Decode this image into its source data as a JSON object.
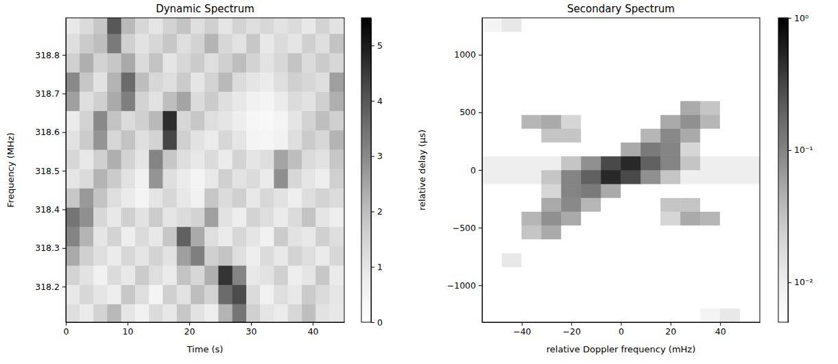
{
  "chart_data": [
    {
      "type": "heatmap",
      "title": "Dynamic Spectrum",
      "xlabel": "Time (s)",
      "ylabel": "Frequency (MHz)",
      "xlim": [
        0,
        45.1
      ],
      "ylim": [
        318.108,
        318.896
      ],
      "xticks": [
        0,
        10,
        20,
        30,
        40
      ],
      "yticks": [
        318.2,
        318.3,
        318.4,
        318.5,
        318.6,
        318.7,
        318.8
      ],
      "x": [
        1.125,
        3.375,
        5.625,
        7.875,
        10.125,
        12.375,
        14.625,
        16.875,
        19.125,
        21.375,
        23.625,
        25.875,
        28.125,
        30.375,
        32.625,
        34.875,
        37.125,
        39.375,
        41.625,
        43.875
      ],
      "y": [
        318.13,
        318.18,
        318.23,
        318.28,
        318.33,
        318.38,
        318.43,
        318.48,
        318.53,
        318.58,
        318.63,
        318.68,
        318.73,
        318.78,
        318.83,
        318.88
      ],
      "cells": [
        [
          1.2,
          0.8,
          1.5,
          2.1,
          1.0,
          0.6,
          1.3,
          0.9,
          1.8,
          1.1,
          0.7,
          2.2,
          3.4,
          1.6,
          1.0,
          0.8,
          1.4,
          2.0,
          1.1,
          0.9
        ],
        [
          0.9,
          1.4,
          1.0,
          0.7,
          1.8,
          1.2,
          0.5,
          1.6,
          1.1,
          2.0,
          1.5,
          3.6,
          4.2,
          1.3,
          0.6,
          1.2,
          0.9,
          1.7,
          1.3,
          1.0
        ],
        [
          1.5,
          1.1,
          0.6,
          1.3,
          0.9,
          1.7,
          1.2,
          0.8,
          1.9,
          1.4,
          2.3,
          4.6,
          3.1,
          0.9,
          1.1,
          1.6,
          0.7,
          1.0,
          1.8,
          0.8
        ],
        [
          2.4,
          1.6,
          1.2,
          0.8,
          1.4,
          1.0,
          1.5,
          1.1,
          2.6,
          3.2,
          1.6,
          1.9,
          1.2,
          0.7,
          1.3,
          0.9,
          1.5,
          1.2,
          0.8,
          1.4
        ],
        [
          3.1,
          2.2,
          1.0,
          1.5,
          0.7,
          1.3,
          0.9,
          1.8,
          3.8,
          2.4,
          1.2,
          0.8,
          1.4,
          1.0,
          0.6,
          1.7,
          1.1,
          0.9,
          1.6,
          1.2
        ],
        [
          3.4,
          2.9,
          1.4,
          0.9,
          1.6,
          1.1,
          1.7,
          1.0,
          1.3,
          1.5,
          2.6,
          1.1,
          0.7,
          1.5,
          1.2,
          0.8,
          1.3,
          1.9,
          1.0,
          0.7
        ],
        [
          1.8,
          2.7,
          1.9,
          1.2,
          0.8,
          0.5,
          1.0,
          1.4,
          0.9,
          0.6,
          1.8,
          1.3,
          1.6,
          0.9,
          1.4,
          1.1,
          0.7,
          1.2,
          1.5,
          1.3
        ],
        [
          1.0,
          1.3,
          2.2,
          1.7,
          1.1,
          0.6,
          2.8,
          1.2,
          0.8,
          0.5,
          0.9,
          1.6,
          1.1,
          1.3,
          0.8,
          2.9,
          1.4,
          1.0,
          0.7,
          1.6
        ],
        [
          1.4,
          0.9,
          1.6,
          2.3,
          1.5,
          1.0,
          3.1,
          1.8,
          1.2,
          0.9,
          1.3,
          0.8,
          1.5,
          1.0,
          1.2,
          2.5,
          2.0,
          1.3,
          1.1,
          1.8
        ],
        [
          1.1,
          1.7,
          2.8,
          1.4,
          1.9,
          1.2,
          1.5,
          4.3,
          1.6,
          1.1,
          0.8,
          1.4,
          1.0,
          0.5,
          0.4,
          0.6,
          1.2,
          1.7,
          1.4,
          2.2
        ],
        [
          0.8,
          1.5,
          3.0,
          1.9,
          1.3,
          1.6,
          2.1,
          4.7,
          1.4,
          1.8,
          1.2,
          1.0,
          0.7,
          0.4,
          0.3,
          0.5,
          1.0,
          1.5,
          2.0,
          1.6
        ],
        [
          2.6,
          1.2,
          1.6,
          2.4,
          3.2,
          1.5,
          1.1,
          2.0,
          2.5,
          1.3,
          1.7,
          1.2,
          0.9,
          0.6,
          0.5,
          0.8,
          1.3,
          1.1,
          1.6,
          2.3
        ],
        [
          3.0,
          1.8,
          1.1,
          2.2,
          3.6,
          2.0,
          1.4,
          1.2,
          1.7,
          1.0,
          1.5,
          2.1,
          1.3,
          1.0,
          0.8,
          1.2,
          1.6,
          1.4,
          1.2,
          2.6
        ],
        [
          1.6,
          2.3,
          1.5,
          1.8,
          2.4,
          1.3,
          1.9,
          1.0,
          1.4,
          1.7,
          1.2,
          1.6,
          2.0,
          1.5,
          1.1,
          1.4,
          1.9,
          1.3,
          1.7,
          1.4
        ],
        [
          1.2,
          1.7,
          2.0,
          3.3,
          1.6,
          1.1,
          1.4,
          1.8,
          1.2,
          1.5,
          2.2,
          1.4,
          1.1,
          1.8,
          0.9,
          1.3,
          1.0,
          1.6,
          1.2,
          1.9
        ],
        [
          0.9,
          1.3,
          1.8,
          4.0,
          2.1,
          1.4,
          1.0,
          1.5,
          1.9,
          1.2,
          1.6,
          1.0,
          1.5,
          1.2,
          1.4,
          1.1,
          1.3,
          0.9,
          1.5,
          1.1
        ]
      ],
      "color": "Greys",
      "colorbar": {
        "lim": [
          0,
          5.5
        ],
        "ticks": [
          0,
          1,
          2,
          3,
          4,
          5
        ]
      }
    },
    {
      "type": "heatmap",
      "title": "Secondary Spectrum",
      "xlabel": "relative Doppler frequency (mHz)",
      "ylabel": "relative delay (μs)",
      "xlim": [
        -56,
        56
      ],
      "ylim": [
        -1320,
        1320
      ],
      "xticks": [
        {
          "value": -40,
          "label": "−40"
        },
        {
          "value": -20,
          "label": "−20"
        },
        0,
        20,
        40
      ],
      "yticks": [
        {
          "value": -1000,
          "label": "−1000"
        },
        {
          "value": -500,
          "label": "−500"
        },
        0,
        500,
        1000
      ],
      "x": [
        -52,
        -44,
        -36,
        -28,
        -20,
        -12,
        -4,
        4,
        12,
        20,
        28,
        36,
        44,
        52
      ],
      "y": [
        -1260,
        -1140,
        -1020,
        -900,
        -780,
        -660,
        -540,
        -420,
        -300,
        -180,
        -60,
        60,
        180,
        300,
        420,
        540,
        660,
        780,
        900,
        1020,
        1140,
        1260
      ],
      "cells": [
        [
          0.005,
          0.005,
          0.005,
          0.005,
          0.005,
          0.005,
          0.005,
          0.005,
          0.005,
          0.005,
          0.005,
          0.008,
          0.012,
          0.005
        ],
        [
          0.005,
          0.005,
          0.005,
          0.005,
          0.005,
          0.005,
          0.005,
          0.005,
          0.005,
          0.005,
          0.005,
          0.005,
          0.005,
          0.005
        ],
        [
          0.005,
          0.005,
          0.005,
          0.005,
          0.005,
          0.005,
          0.005,
          0.005,
          0.005,
          0.005,
          0.005,
          0.005,
          0.005,
          0.005
        ],
        [
          0.005,
          0.005,
          0.005,
          0.005,
          0.005,
          0.005,
          0.005,
          0.005,
          0.005,
          0.005,
          0.005,
          0.005,
          0.005,
          0.005
        ],
        [
          0.005,
          0.012,
          0.005,
          0.005,
          0.005,
          0.005,
          0.005,
          0.005,
          0.005,
          0.005,
          0.005,
          0.005,
          0.005,
          0.005
        ],
        [
          0.005,
          0.005,
          0.005,
          0.005,
          0.005,
          0.005,
          0.005,
          0.005,
          0.005,
          0.005,
          0.005,
          0.005,
          0.005,
          0.005
        ],
        [
          0.005,
          0.005,
          0.03,
          0.05,
          0.005,
          0.005,
          0.005,
          0.005,
          0.005,
          0.005,
          0.005,
          0.005,
          0.005,
          0.005
        ],
        [
          0.005,
          0.005,
          0.04,
          0.08,
          0.05,
          0.005,
          0.005,
          0.005,
          0.005,
          0.02,
          0.05,
          0.04,
          0.005,
          0.005
        ],
        [
          0.005,
          0.005,
          0.005,
          0.05,
          0.09,
          0.04,
          0.005,
          0.005,
          0.005,
          0.03,
          0.03,
          0.005,
          0.005,
          0.005
        ],
        [
          0.005,
          0.005,
          0.005,
          0.02,
          0.1,
          0.12,
          0.05,
          0.005,
          0.005,
          0.005,
          0.005,
          0.005,
          0.005,
          0.005
        ],
        [
          0.01,
          0.01,
          0.01,
          0.03,
          0.1,
          0.2,
          0.5,
          0.3,
          0.08,
          0.03,
          0.01,
          0.01,
          0.01,
          0.01
        ],
        [
          0.01,
          0.01,
          0.01,
          0.01,
          0.03,
          0.08,
          0.3,
          0.5,
          0.2,
          0.1,
          0.03,
          0.01,
          0.01,
          0.01
        ],
        [
          0.005,
          0.005,
          0.005,
          0.005,
          0.005,
          0.005,
          0.005,
          0.05,
          0.12,
          0.1,
          0.02,
          0.005,
          0.005,
          0.005
        ],
        [
          0.005,
          0.005,
          0.005,
          0.03,
          0.03,
          0.005,
          0.005,
          0.005,
          0.04,
          0.09,
          0.05,
          0.005,
          0.005,
          0.005
        ],
        [
          0.005,
          0.005,
          0.04,
          0.05,
          0.02,
          0.005,
          0.005,
          0.005,
          0.005,
          0.05,
          0.08,
          0.04,
          0.005,
          0.005
        ],
        [
          0.005,
          0.005,
          0.005,
          0.005,
          0.005,
          0.005,
          0.005,
          0.005,
          0.005,
          0.005,
          0.05,
          0.03,
          0.005,
          0.005
        ],
        [
          0.005,
          0.005,
          0.005,
          0.005,
          0.005,
          0.005,
          0.005,
          0.005,
          0.005,
          0.005,
          0.005,
          0.005,
          0.005,
          0.005
        ],
        [
          0.005,
          0.005,
          0.005,
          0.005,
          0.005,
          0.005,
          0.005,
          0.005,
          0.005,
          0.005,
          0.005,
          0.005,
          0.005,
          0.005
        ],
        [
          0.005,
          0.005,
          0.005,
          0.005,
          0.005,
          0.005,
          0.005,
          0.005,
          0.005,
          0.005,
          0.005,
          0.005,
          0.005,
          0.005
        ],
        [
          0.005,
          0.005,
          0.005,
          0.005,
          0.005,
          0.005,
          0.005,
          0.005,
          0.005,
          0.005,
          0.005,
          0.005,
          0.005,
          0.005
        ],
        [
          0.005,
          0.005,
          0.005,
          0.005,
          0.005,
          0.005,
          0.005,
          0.005,
          0.005,
          0.005,
          0.005,
          0.005,
          0.005,
          0.005
        ],
        [
          0.008,
          0.012,
          0.005,
          0.005,
          0.005,
          0.005,
          0.005,
          0.005,
          0.005,
          0.005,
          0.005,
          0.005,
          0.005,
          0.005
        ]
      ],
      "color": "Greys",
      "colorbar": {
        "lim": [
          0.005,
          1
        ],
        "log": true,
        "ticks": [
          {
            "value": 0.01,
            "label": "10⁻²"
          },
          {
            "value": 0.1,
            "label": "10⁻¹"
          },
          {
            "value": 1,
            "label": "10⁰"
          }
        ]
      }
    }
  ]
}
